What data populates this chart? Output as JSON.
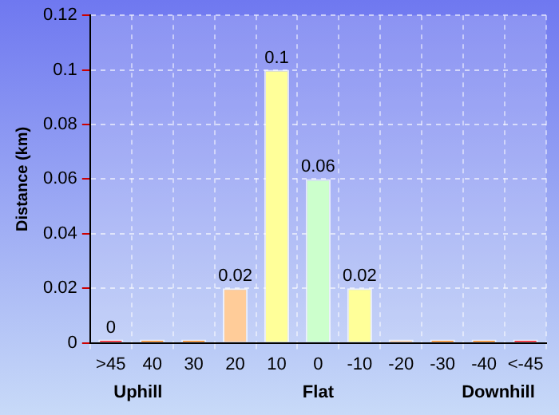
{
  "chart_data": {
    "type": "bar",
    "ylabel": "Distance (km)",
    "categories": [
      ">45",
      "40",
      "30",
      "20",
      "10",
      "0",
      "-10",
      "-20",
      "-30",
      "-40",
      "<-45"
    ],
    "values": [
      0,
      0,
      0,
      0.02,
      0.1,
      0.06,
      0.02,
      0,
      0,
      0,
      0
    ],
    "colors": [
      "#ff0000",
      "#ff8000",
      "#ff8000",
      "#ffcc99",
      "#ffff99",
      "#ccffcc",
      "#ffff99",
      "#ffcc99",
      "#ff8000",
      "#ff8000",
      "#ff0000"
    ],
    "value_labels": [
      "0",
      null,
      null,
      "0.02",
      "0.1",
      "0.06",
      "0.02",
      null,
      null,
      null,
      null
    ],
    "ylim": [
      0,
      0.12
    ],
    "yticks": [
      0,
      0.02,
      0.04,
      0.06,
      0.08,
      0.1,
      0.12
    ],
    "grid": true,
    "annotations": [
      "Uphill",
      "Flat",
      "Downhill"
    ]
  }
}
